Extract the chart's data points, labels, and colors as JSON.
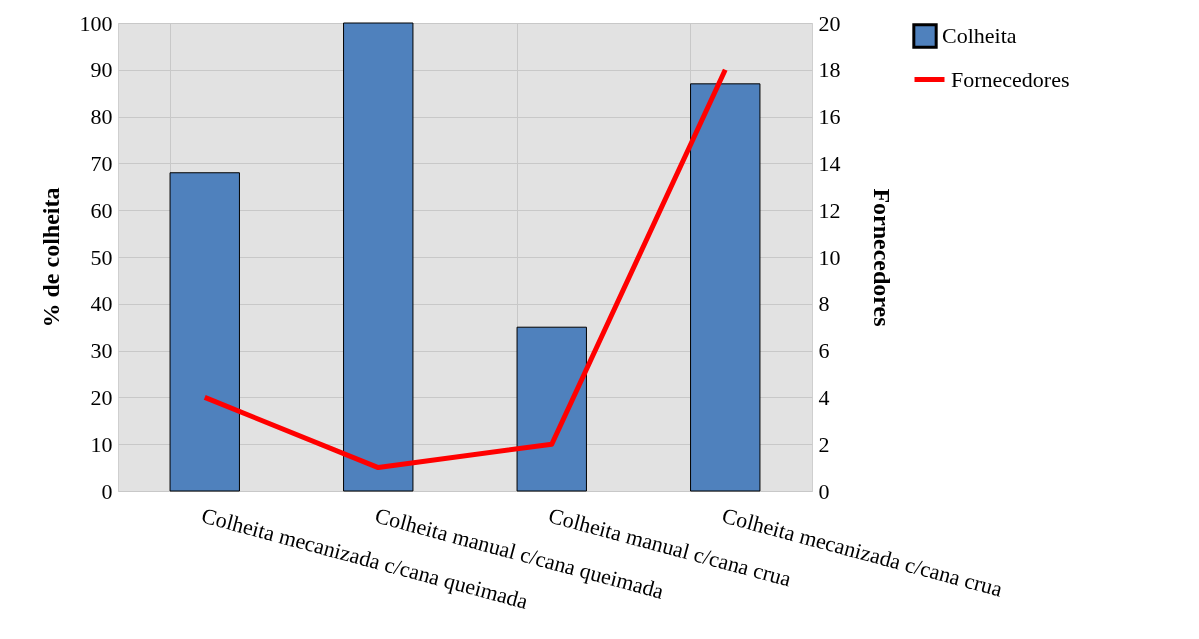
{
  "chart_data": {
    "type": "bar",
    "ylabel": "%  de colheita",
    "y2label": "Fornecedores",
    "categories": [
      "Colheita mecanizada c/cana queimada",
      "Colheita manual c/cana queimada",
      "Colheita manual c/cana crua",
      "Colheita mecanizada c/cana crua"
    ],
    "series": [
      {
        "name": "Colheita",
        "color": "#4f81bd",
        "values": [
          68,
          100,
          35,
          87
        ]
      },
      {
        "name": "Fornecedores",
        "type": "line",
        "axis": "y2",
        "color": "#ff0000",
        "values": [
          4,
          1,
          2,
          18
        ]
      }
    ],
    "ylim": [
      0,
      100
    ],
    "yticks": [
      0,
      10,
      20,
      30,
      40,
      50,
      60,
      70,
      80,
      90,
      100
    ],
    "y2lim": [
      0,
      20
    ],
    "y2ticks": [
      0,
      2,
      4,
      6,
      8,
      10,
      12,
      14,
      16,
      18,
      20
    ],
    "grid": true,
    "legend": "top right"
  }
}
